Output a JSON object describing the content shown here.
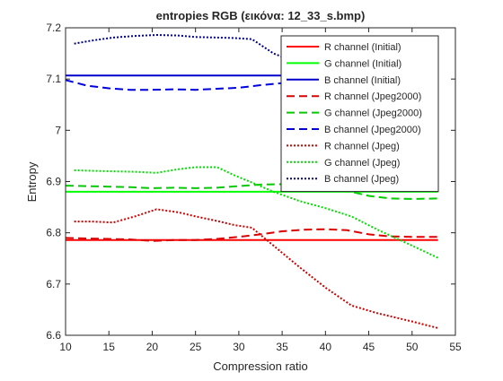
{
  "chart_data": {
    "type": "line",
    "title": "entropies RGB (εικόνα: 12_33_s.bmp)",
    "xlabel": "Compression ratio",
    "ylabel": "Entropy",
    "xlim": [
      10,
      55
    ],
    "ylim": [
      6.6,
      7.2
    ],
    "xticks": [
      10,
      15,
      20,
      25,
      30,
      35,
      40,
      45,
      50,
      55
    ],
    "yticks": [
      6.6,
      6.7,
      6.8,
      6.9,
      7.0,
      7.1,
      7.2
    ],
    "ytick_labels": [
      "6.6",
      "6.7",
      "6.8",
      "6.9",
      "7",
      "7.1",
      "7.2"
    ],
    "grid": false,
    "legend_position": "top-right",
    "series": [
      {
        "name": "R channel (Initial)",
        "color": "#ff0000",
        "style": "solid",
        "x": [
          10,
          53
        ],
        "y": [
          6.786,
          6.786
        ]
      },
      {
        "name": "G channel (Initial)",
        "color": "#00ff00",
        "style": "solid",
        "x": [
          10,
          53
        ],
        "y": [
          6.88,
          6.88
        ]
      },
      {
        "name": "B channel (Initial)",
        "color": "#0000cc",
        "style": "solid",
        "x": [
          10,
          53
        ],
        "y": [
          7.107,
          7.107
        ]
      },
      {
        "name": "R channel (Jpeg2000)",
        "color": "#dd0000",
        "style": "dashed",
        "x": [
          10,
          12.5,
          15,
          17.5,
          20,
          22.5,
          25,
          27.5,
          30,
          32.5,
          35,
          37.5,
          40,
          42.5,
          45,
          47.5,
          50,
          53
        ],
        "y": [
          6.79,
          6.789,
          6.788,
          6.787,
          6.784,
          6.786,
          6.786,
          6.788,
          6.792,
          6.797,
          6.803,
          6.806,
          6.807,
          6.805,
          6.797,
          6.793,
          6.792,
          6.792
        ]
      },
      {
        "name": "G channel (Jpeg2000)",
        "color": "#00cc00",
        "style": "dashed",
        "x": [
          10,
          12.5,
          15,
          17.5,
          20,
          22.5,
          25,
          27.5,
          30,
          32.5,
          35,
          37.5,
          40,
          42.5,
          45,
          47.5,
          50,
          53
        ],
        "y": [
          6.892,
          6.891,
          6.89,
          6.889,
          6.887,
          6.888,
          6.887,
          6.888,
          6.891,
          6.894,
          6.895,
          6.891,
          6.887,
          6.882,
          6.872,
          6.867,
          6.866,
          6.867
        ]
      },
      {
        "name": "B channel (Jpeg2000)",
        "color": "#0000dd",
        "style": "dashed",
        "x": [
          10,
          12.5,
          15,
          17.5,
          20,
          22.5,
          25,
          27.5,
          30,
          32.5,
          35
        ],
        "y": [
          7.098,
          7.087,
          7.082,
          7.079,
          7.079,
          7.08,
          7.079,
          7.081,
          7.083,
          7.088,
          7.092
        ]
      },
      {
        "name": "R channel (Jpeg)",
        "color": "#cc0000",
        "style": "dotted",
        "x": [
          11,
          13,
          15.5,
          18,
          20.5,
          23,
          25,
          27.5,
          29.5,
          31.5,
          34,
          37,
          40,
          43,
          46,
          50,
          53
        ],
        "y": [
          6.822,
          6.822,
          6.82,
          6.832,
          6.846,
          6.84,
          6.832,
          6.823,
          6.815,
          6.81,
          6.775,
          6.733,
          6.693,
          6.658,
          6.643,
          6.627,
          6.614
        ]
      },
      {
        "name": "G channel (Jpeg)",
        "color": "#00dd00",
        "style": "dotted",
        "x": [
          11,
          13,
          15.5,
          18,
          20.5,
          23,
          25,
          27.5,
          29.5,
          31.5,
          34,
          37,
          40,
          43,
          46,
          50,
          53
        ],
        "y": [
          6.922,
          6.921,
          6.92,
          6.919,
          6.917,
          6.924,
          6.928,
          6.928,
          6.912,
          6.898,
          6.88,
          6.862,
          6.848,
          6.832,
          6.806,
          6.775,
          6.751
        ]
      },
      {
        "name": "B channel (Jpeg)",
        "color": "#00008b",
        "style": "dotted",
        "x": [
          11,
          13,
          15.5,
          18,
          20.5,
          23,
          25,
          27.5,
          29.5,
          31.5,
          34,
          37,
          40,
          43,
          46,
          50,
          53
        ],
        "y": [
          7.169,
          7.175,
          7.181,
          7.184,
          7.186,
          7.185,
          7.182,
          7.181,
          7.18,
          7.178,
          7.15,
          7.13,
          7.11,
          7.09,
          7.07,
          7.04,
          6.984
        ]
      }
    ]
  }
}
